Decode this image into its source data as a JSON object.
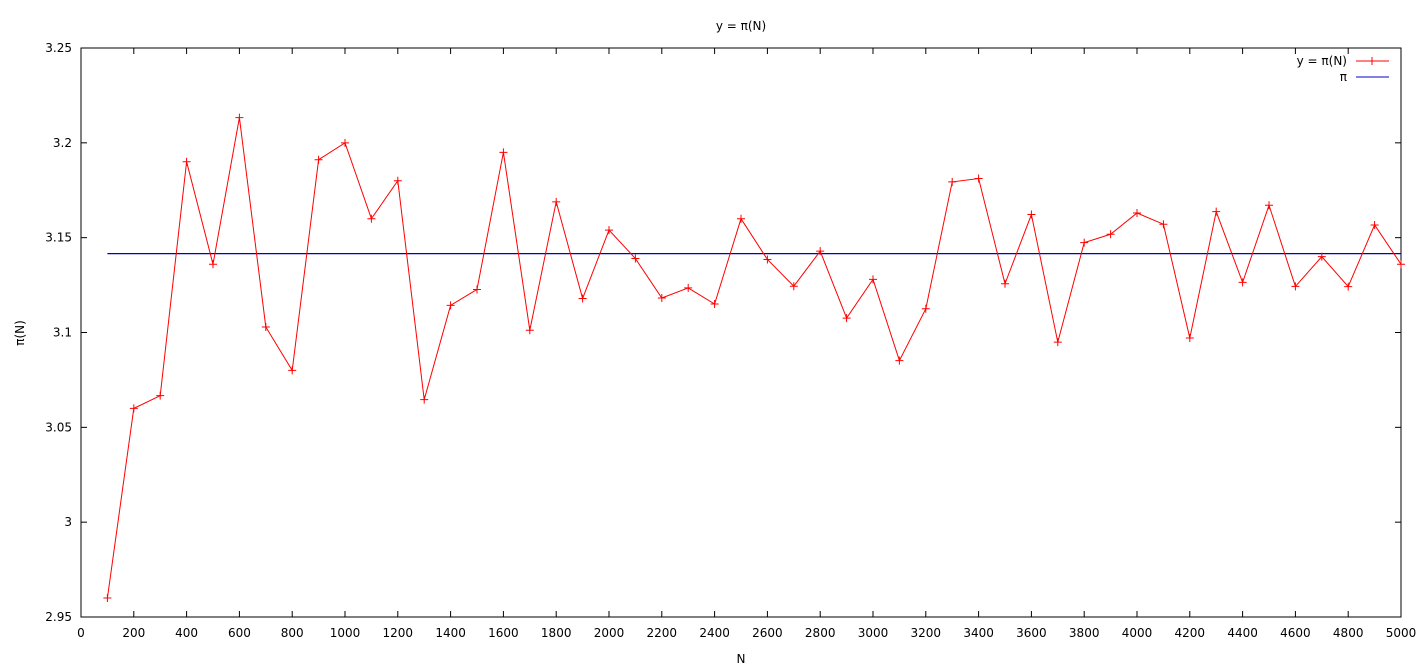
{
  "chart_data": {
    "type": "line",
    "title": "y = π(N)",
    "xlabel": "N",
    "ylabel": "π(N)",
    "xlim": [
      0,
      5000
    ],
    "ylim": [
      2.95,
      3.25
    ],
    "x_ticks": [
      0,
      200,
      400,
      600,
      800,
      1000,
      1200,
      1400,
      1600,
      1800,
      2000,
      2200,
      2400,
      2600,
      2800,
      3000,
      3200,
      3400,
      3600,
      3800,
      4000,
      4200,
      4400,
      4600,
      4800,
      5000
    ],
    "y_ticks": [
      2.95,
      3,
      3.05,
      3.1,
      3.15,
      3.2,
      3.25
    ],
    "y_tick_labels": [
      "2.95",
      "3",
      "3.05",
      "3.1",
      "3.15",
      "3.2",
      "3.25"
    ],
    "grid": false,
    "legend_position": "top-right",
    "series": [
      {
        "name": "y = π(N)",
        "color": "#ff0000",
        "marker": "plus",
        "x": [
          100,
          200,
          300,
          400,
          500,
          600,
          700,
          800,
          900,
          1000,
          1100,
          1200,
          1300,
          1400,
          1500,
          1600,
          1700,
          1800,
          1900,
          2000,
          2100,
          2200,
          2300,
          2400,
          2500,
          2600,
          2700,
          2800,
          2900,
          3000,
          3100,
          3200,
          3300,
          3400,
          3500,
          3600,
          3700,
          3800,
          3900,
          4000,
          4100,
          4200,
          4300,
          4400,
          4500,
          4600,
          4700,
          4800,
          4900,
          5000
        ],
        "y": [
          2.96,
          3.06,
          3.0667,
          3.19,
          3.136,
          3.2133,
          3.1029,
          3.08,
          3.1911,
          3.2,
          3.16,
          3.18,
          3.0646,
          3.1143,
          3.1227,
          3.195,
          3.1012,
          3.1689,
          3.1179,
          3.154,
          3.139,
          3.1182,
          3.1235,
          3.115,
          3.16,
          3.1385,
          3.1244,
          3.1429,
          3.1076,
          3.128,
          3.0852,
          3.1125,
          3.1794,
          3.1812,
          3.1257,
          3.1622,
          3.0949,
          3.1474,
          3.1518,
          3.163,
          3.1571,
          3.0971,
          3.1637,
          3.1264,
          3.1671,
          3.1243,
          3.14,
          3.1242,
          3.1567,
          3.136
        ]
      },
      {
        "name": "π",
        "color": "#0000cc",
        "marker": "none",
        "x": [
          100,
          5000
        ],
        "y": [
          3.14159,
          3.14159
        ]
      }
    ]
  }
}
